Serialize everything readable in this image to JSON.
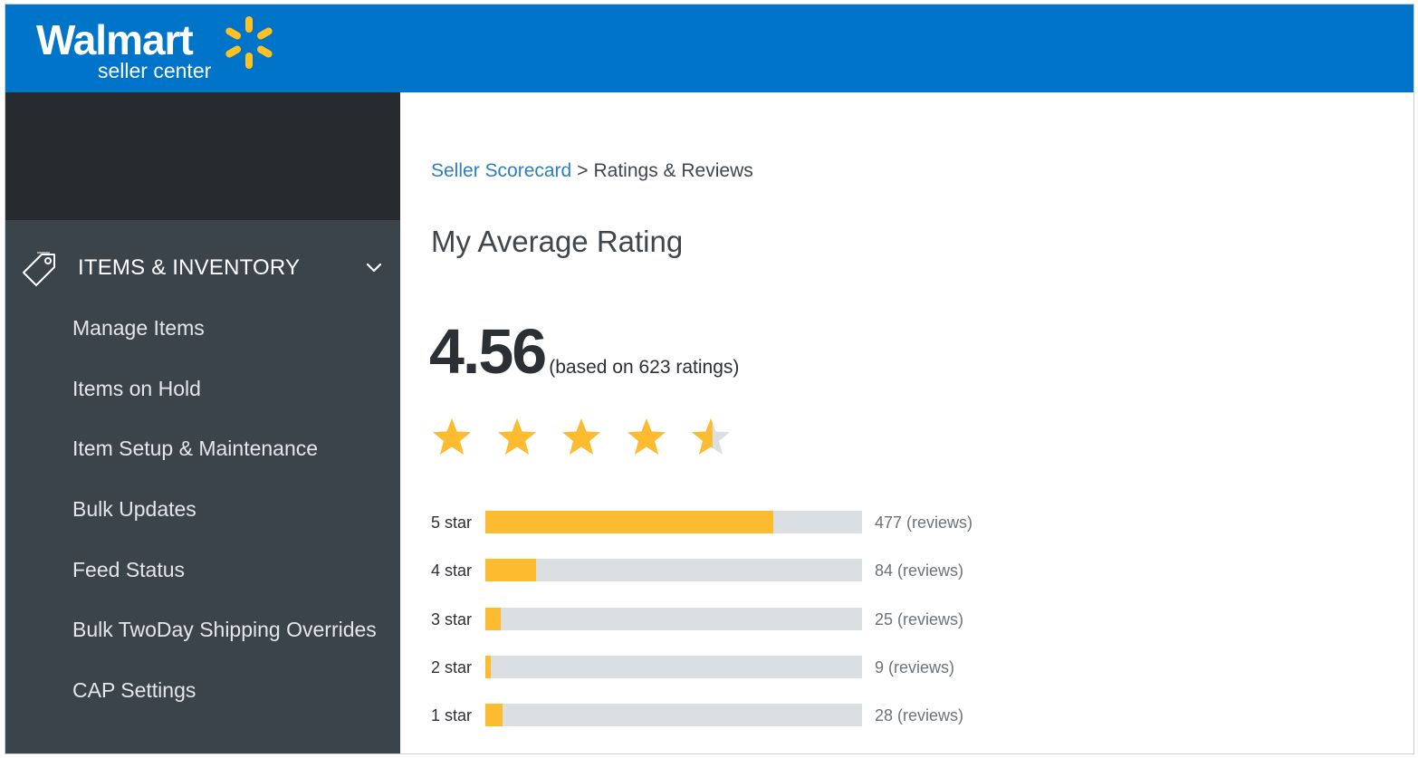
{
  "brand": {
    "name": "Walmart",
    "subtitle": "seller center",
    "header_color": "#0074c8",
    "spark_color": "#ffc220"
  },
  "sidebar": {
    "section": {
      "title": "ITEMS & INVENTORY",
      "icon": "tag-icon",
      "expanded": true
    },
    "items": [
      {
        "label": "Manage Items"
      },
      {
        "label": "Items on Hold"
      },
      {
        "label": "Item Setup & Maintenance"
      },
      {
        "label": "Bulk Updates"
      },
      {
        "label": "Feed Status"
      },
      {
        "label": "Bulk TwoDay Shipping Overrides"
      },
      {
        "label": "CAP Settings"
      }
    ]
  },
  "breadcrumb": {
    "parent": "Seller Scorecard",
    "separator": ">",
    "current": "Ratings & Reviews"
  },
  "page": {
    "title": "My Average Rating"
  },
  "rating": {
    "value": "4.56",
    "note": "(based on 623 ratings)",
    "stars_filled": 4.56,
    "stars_max": 5,
    "star_color": "#fdbb2f",
    "star_empty_color": "#dcdfe2"
  },
  "breakdown": [
    {
      "label": "5 star",
      "fill_fraction": 0.765,
      "count": "477 (reviews)"
    },
    {
      "label": "4 star",
      "fill_fraction": 0.135,
      "count": "84 (reviews)"
    },
    {
      "label": "3 star",
      "fill_fraction": 0.04,
      "count": "25 (reviews)"
    },
    {
      "label": "2 star",
      "fill_fraction": 0.014,
      "count": "9 (reviews)"
    },
    {
      "label": "1 star",
      "fill_fraction": 0.045,
      "count": "28 (reviews)"
    }
  ]
}
